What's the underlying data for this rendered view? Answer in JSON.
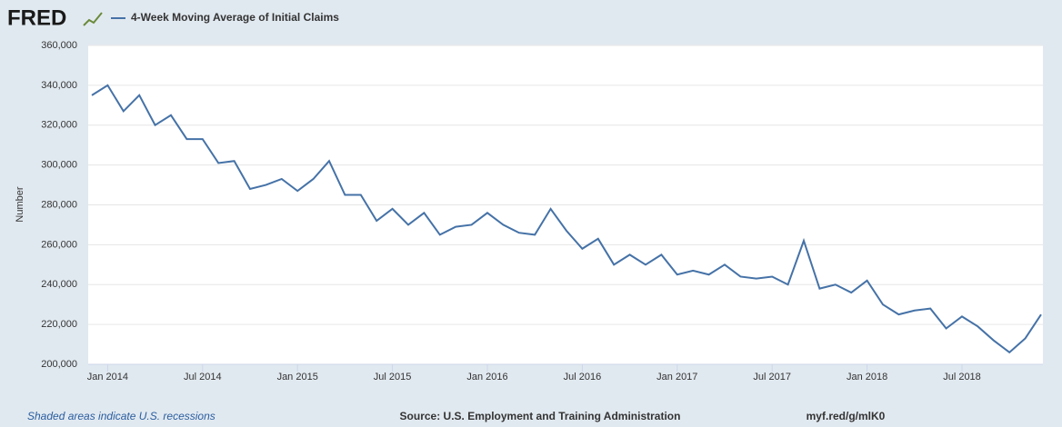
{
  "brand": "FRED",
  "chart_data": {
    "type": "line",
    "series": [
      {
        "name": "4-Week Moving Average of Initial Claims",
        "color": "#4572a7",
        "values": [
          335000,
          340000,
          327000,
          335000,
          320000,
          325000,
          313000,
          313000,
          301000,
          302000,
          288000,
          290000,
          293000,
          287000,
          293000,
          302000,
          285000,
          285000,
          272000,
          278000,
          270000,
          276000,
          265000,
          269000,
          270000,
          276000,
          270000,
          266000,
          265000,
          278000,
          267000,
          258000,
          263000,
          250000,
          255000,
          250000,
          255000,
          245000,
          247000,
          245000,
          250000,
          244000,
          243000,
          244000,
          240000,
          262000,
          238000,
          240000,
          236000,
          242000,
          230000,
          225000,
          227000,
          228000,
          218000,
          224000,
          219000,
          212000,
          206000,
          213000,
          225000
        ]
      }
    ],
    "categories": [
      null,
      "Jan 2014",
      null,
      null,
      null,
      null,
      null,
      "Jul 2014",
      null,
      null,
      null,
      null,
      null,
      "Jan 2015",
      null,
      null,
      null,
      null,
      null,
      "Jul 2015",
      null,
      null,
      null,
      null,
      null,
      "Jan 2016",
      null,
      null,
      null,
      null,
      null,
      "Jul 2016",
      null,
      null,
      null,
      null,
      null,
      "Jan 2017",
      null,
      null,
      null,
      null,
      null,
      "Jul 2017",
      null,
      null,
      null,
      null,
      null,
      "Jan 2018",
      null,
      null,
      null,
      null,
      null,
      "Jul 2018",
      null,
      null,
      null,
      null,
      null
    ],
    "ylabel": "Number",
    "ylim": [
      200000,
      360000
    ],
    "yticks": [
      {
        "value": 200000,
        "label": "200,000"
      },
      {
        "value": 220000,
        "label": "220,000"
      },
      {
        "value": 240000,
        "label": "240,000"
      },
      {
        "value": 260000,
        "label": "260,000"
      },
      {
        "value": 280000,
        "label": "280,000"
      },
      {
        "value": 300000,
        "label": "300,000"
      },
      {
        "value": 320000,
        "label": "320,000"
      },
      {
        "value": 340000,
        "label": "340,000"
      },
      {
        "value": 360000,
        "label": "360,000"
      }
    ],
    "grid": true
  },
  "footer": {
    "note": "Shaded areas indicate U.S. recessions",
    "source": "Source: U.S. Employment and Training Administration",
    "link": "myf.red/g/mlK0"
  }
}
